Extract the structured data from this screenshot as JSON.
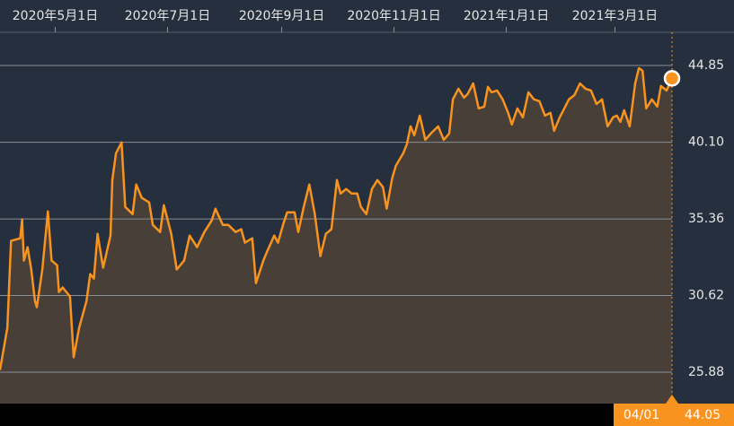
{
  "chart_data": {
    "type": "line",
    "x": [
      "2020-04-01",
      "2020-04-05",
      "2020-04-07",
      "2020-04-12",
      "2020-04-13",
      "2020-04-14",
      "2020-04-16",
      "2020-04-18",
      "2020-04-20",
      "2020-04-21",
      "2020-04-24",
      "2020-04-27",
      "2020-04-29",
      "2020-05-02",
      "2020-05-03",
      "2020-05-05",
      "2020-05-09",
      "2020-05-11",
      "2020-05-14",
      "2020-05-18",
      "2020-05-20",
      "2020-05-22",
      "2020-05-24",
      "2020-05-27",
      "2020-05-31",
      "2020-06-01",
      "2020-06-03",
      "2020-06-06",
      "2020-06-08",
      "2020-06-12",
      "2020-06-14",
      "2020-06-17",
      "2020-06-21",
      "2020-06-23",
      "2020-06-27",
      "2020-06-29",
      "2020-07-03",
      "2020-07-06",
      "2020-07-10",
      "2020-07-13",
      "2020-07-17",
      "2020-07-21",
      "2020-07-25",
      "2020-07-27",
      "2020-07-31",
      "2020-08-03",
      "2020-08-07",
      "2020-08-10",
      "2020-08-12",
      "2020-08-16",
      "2020-08-18",
      "2020-08-22",
      "2020-08-24",
      "2020-08-28",
      "2020-08-30",
      "2020-09-02",
      "2020-09-04",
      "2020-09-08",
      "2020-09-10",
      "2020-09-13",
      "2020-09-16",
      "2020-09-19",
      "2020-09-22",
      "2020-09-25",
      "2020-09-28",
      "2020-10-01",
      "2020-10-03",
      "2020-10-06",
      "2020-10-09",
      "2020-10-12",
      "2020-10-14",
      "2020-10-17",
      "2020-10-20",
      "2020-10-23",
      "2020-10-26",
      "2020-10-28",
      "2020-10-31",
      "2020-11-02",
      "2020-11-06",
      "2020-11-08",
      "2020-11-10",
      "2020-11-12",
      "2020-11-15",
      "2020-11-18",
      "2020-11-21",
      "2020-11-25",
      "2020-11-28",
      "2020-12-01",
      "2020-12-03",
      "2020-12-06",
      "2020-12-09",
      "2020-12-11",
      "2020-12-14",
      "2020-12-17",
      "2020-12-20",
      "2020-12-22",
      "2020-12-24",
      "2020-12-27",
      "2020-12-30",
      "2021-01-02",
      "2021-01-04",
      "2021-01-07",
      "2021-01-10",
      "2021-01-13",
      "2021-01-16",
      "2021-01-19",
      "2021-01-22",
      "2021-01-25",
      "2021-01-27",
      "2021-01-30",
      "2021-02-01",
      "2021-02-04",
      "2021-02-07",
      "2021-02-10",
      "2021-02-13",
      "2021-02-16",
      "2021-02-19",
      "2021-02-22",
      "2021-02-25",
      "2021-02-28",
      "2021-03-02",
      "2021-03-04",
      "2021-03-06",
      "2021-03-09",
      "2021-03-12",
      "2021-03-14",
      "2021-03-16",
      "2021-03-18",
      "2021-03-21",
      "2021-03-24",
      "2021-03-26",
      "2021-03-29",
      "2021-04-01"
    ],
    "values": [
      26.02,
      28.63,
      34.0,
      34.16,
      35.33,
      32.78,
      33.61,
      32.23,
      30.29,
      29.9,
      32.23,
      35.82,
      32.78,
      32.5,
      30.84,
      31.12,
      30.56,
      26.8,
      28.63,
      30.29,
      31.95,
      31.67,
      34.44,
      32.34,
      34.33,
      37.76,
      39.42,
      40.09,
      36.1,
      35.66,
      37.49,
      36.66,
      36.38,
      34.99,
      34.55,
      36.21,
      34.44,
      32.23,
      32.78,
      34.33,
      33.61,
      34.55,
      35.27,
      35.99,
      34.99,
      34.99,
      34.55,
      34.72,
      33.89,
      34.16,
      31.39,
      32.78,
      33.33,
      34.33,
      33.89,
      35.1,
      35.77,
      35.77,
      34.55,
      36.1,
      37.49,
      35.66,
      33.06,
      34.44,
      34.72,
      37.76,
      36.93,
      37.21,
      36.93,
      36.93,
      36.1,
      35.66,
      37.21,
      37.76,
      37.32,
      35.99,
      37.87,
      38.65,
      39.42,
      39.98,
      41.08,
      40.53,
      41.75,
      40.25,
      40.64,
      41.08,
      40.25,
      40.64,
      42.75,
      43.41,
      42.86,
      43.08,
      43.74,
      42.19,
      42.3,
      43.52,
      43.19,
      43.3,
      42.75,
      41.92,
      41.2,
      42.19,
      41.64,
      43.19,
      42.75,
      42.64,
      41.75,
      41.92,
      40.81,
      41.64,
      42.08,
      42.75,
      43.02,
      43.74,
      43.41,
      43.3,
      42.47,
      42.75,
      41.08,
      41.64,
      41.75,
      41.36,
      42.08,
      41.08,
      43.74,
      44.68,
      44.52,
      42.19,
      42.75,
      42.3,
      43.58,
      43.3,
      44.05
    ],
    "color": "#f7931e",
    "xlim": [
      "2020-04-01",
      "2021-04-01"
    ],
    "xticks": [
      {
        "value": "2020-05-01",
        "label": "2020年5月1日"
      },
      {
        "value": "2020-07-01",
        "label": "2020年7月1日"
      },
      {
        "value": "2020-09-01",
        "label": "2020年9月1日"
      },
      {
        "value": "2020-11-01",
        "label": "2020年11月1日"
      },
      {
        "value": "2021-01-01",
        "label": "2021年1月1日"
      },
      {
        "value": "2021-03-01",
        "label": "2021年3月1日"
      }
    ],
    "ylim": [
      23.94,
      46.9
    ],
    "yticks": [
      25.88,
      30.62,
      35.36,
      {
        "value": 40.1,
        "label": "40.10"
      },
      44.85
    ],
    "grid": true,
    "last_label": {
      "date": "04/01",
      "value": 44.05
    }
  }
}
